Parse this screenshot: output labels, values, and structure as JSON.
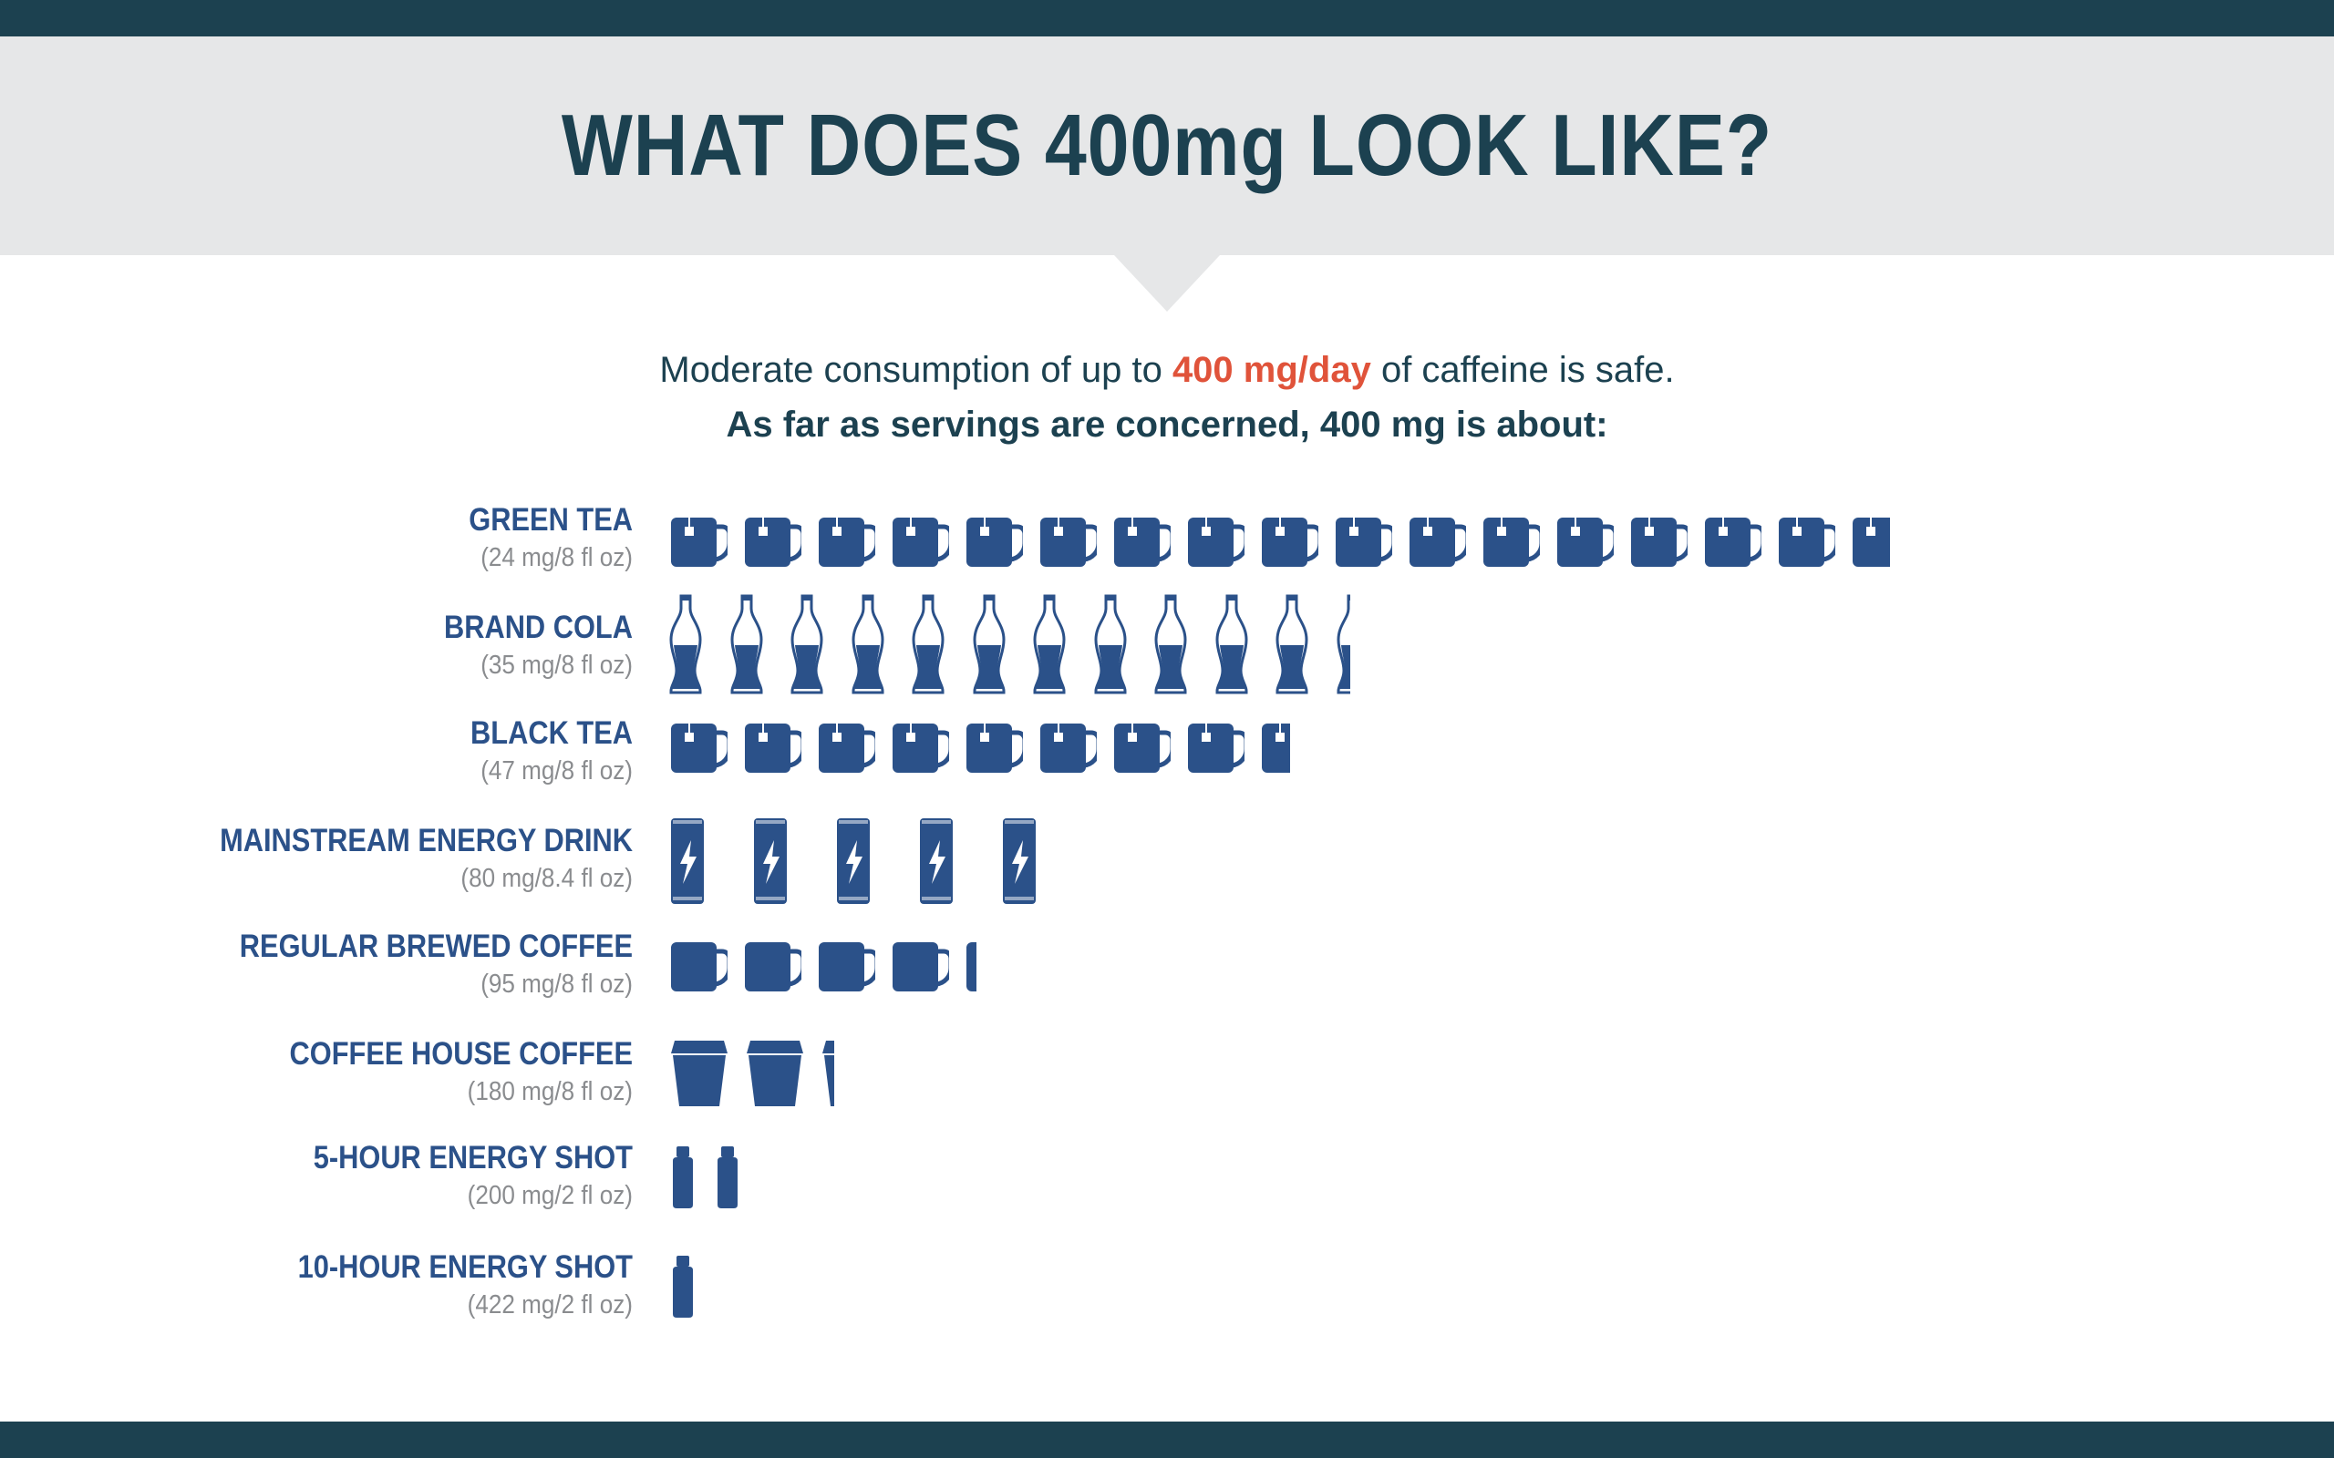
{
  "header": {
    "title": "WHAT DOES 400mg LOOK LIKE?"
  },
  "intro": {
    "line1_before": "Moderate consumption of up to ",
    "line1_highlight": "400 mg/day",
    "line1_after": " of caffeine is safe.",
    "line2": "As far as servings are concerned, 400 mg is about:"
  },
  "colors": {
    "icon": "#2b5189",
    "title": "#1c4150",
    "highlight": "#e0533a",
    "band": "#e6e7e8",
    "bar": "#1c4150"
  },
  "chart_data": {
    "type": "bar",
    "daily_limit_mg": 400,
    "categories": [
      "GREEN TEA",
      "BRAND COLA",
      "BLACK TEA",
      "MAINSTREAM ENERGY DRINK",
      "REGULAR BREWED COFFEE",
      "COFFEE HOUSE COFFEE",
      "5-HOUR ENERGY SHOT",
      "10-HOUR ENERGY SHOT"
    ],
    "servings_labels": [
      "(24 mg/8 fl oz)",
      "(35 mg/8 fl oz)",
      "(47 mg/8 fl oz)",
      "(80 mg/8.4 fl oz)",
      "(95 mg/8 fl oz)",
      "(180 mg/8 fl oz)",
      "(200 mg/2 fl oz)",
      "(422 mg/2 fl oz)"
    ],
    "mg_per_serving": [
      24,
      35,
      47,
      80,
      95,
      180,
      200,
      422
    ],
    "servings_in_400mg": [
      16.67,
      11.43,
      8.51,
      5,
      4.21,
      2.22,
      2,
      0.95
    ],
    "icons": [
      "teabag-mug-icon",
      "cola-bottle-icon",
      "teabag-mug-icon",
      "energy-can-icon",
      "coffee-mug-icon",
      "takeaway-cup-icon",
      "shot-bottle-icon",
      "shot-bottle-icon"
    ]
  }
}
